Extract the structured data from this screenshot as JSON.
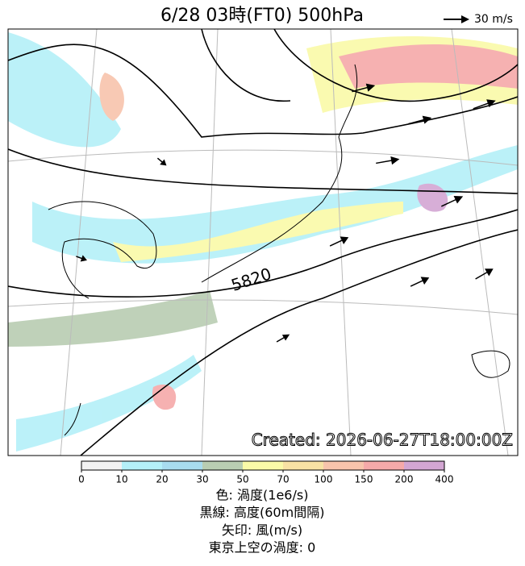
{
  "header": {
    "title": "6/28  03時(FT0)    500hPa",
    "wind_key": "30 m/s"
  },
  "map": {
    "contour_label": "5820",
    "created": "Created: 2026-06-27T18:00:00Z"
  },
  "colorbar": {
    "ticks": [
      0,
      10,
      20,
      30,
      50,
      70,
      100,
      150,
      200,
      400
    ],
    "colors": [
      "#f2f2f2",
      "#b4f0f8",
      "#a8dcef",
      "#b9cdb2",
      "#fafaa8",
      "#f8e2a4",
      "#f8c4ac",
      "#f6a9a9",
      "#d3a6d3"
    ]
  },
  "footer": [
    "色: 渦度(1e6/s)",
    "黒線: 高度(60m間隔)",
    "矢印: 風(m/s)",
    "東京上空の渦度: 0"
  ]
}
